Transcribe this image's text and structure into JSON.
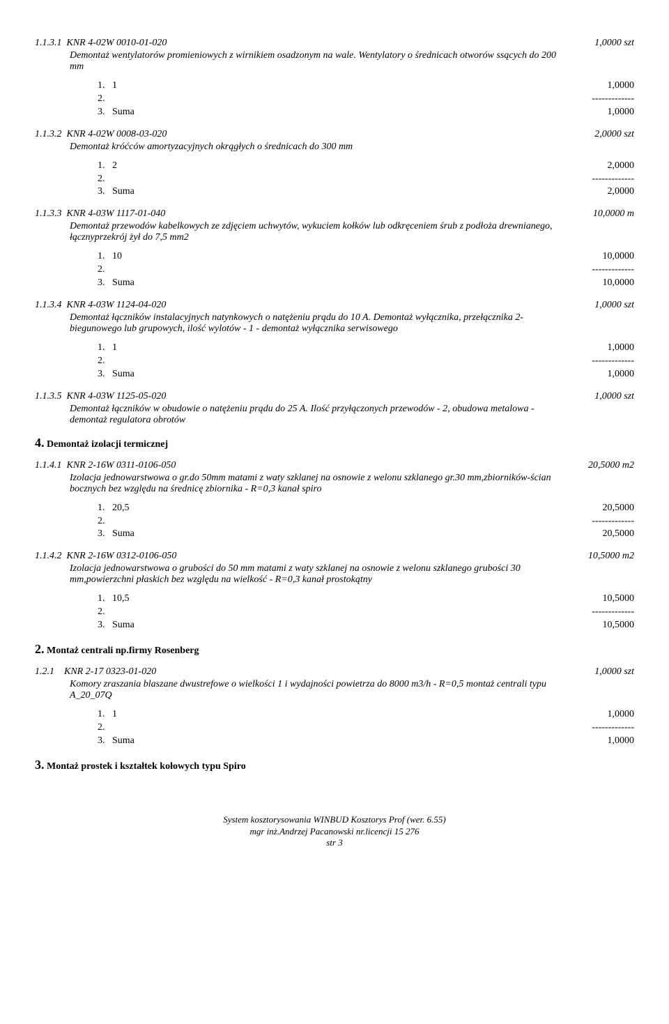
{
  "items": [
    {
      "code": "1.1.3.1  KNR 4-02W 0010-01-020",
      "qty": "1,0000 szt",
      "desc": "Demontaż wentylatorów promieniowych z wirnikiem osadzonym na wale. Wentylatory o średnicach otworów ssących do 200 mm",
      "subs": [
        {
          "l": "1.   1",
          "r": "1,0000"
        },
        {
          "l": "2.",
          "r": "-------------"
        },
        {
          "l": "3.   Suma",
          "r": "1,0000"
        }
      ]
    },
    {
      "code": "1.1.3.2  KNR 4-02W 0008-03-020",
      "qty": "2,0000 szt",
      "desc": "Demontaż króćców amortyzacyjnych okrągłych o średnicach do 300 mm",
      "subs": [
        {
          "l": "1.   2",
          "r": "2,0000"
        },
        {
          "l": "2.",
          "r": "-------------"
        },
        {
          "l": "3.   Suma",
          "r": "2,0000"
        }
      ]
    },
    {
      "code": "1.1.3.3  KNR 4-03W 1117-01-040",
      "qty": "10,0000 m",
      "desc": "Demontaż przewodów kabelkowych ze zdjęciem uchwytów, wykuciem kołków lub odkręceniem śrub z podłoża drewnianego, łącznyprzekrój żył do 7,5 mm2",
      "subs": [
        {
          "l": "1.   10",
          "r": "10,0000"
        },
        {
          "l": "2.",
          "r": "-------------"
        },
        {
          "l": "3.   Suma",
          "r": "10,0000"
        }
      ]
    },
    {
      "code": "1.1.3.4  KNR 4-03W 1124-04-020",
      "qty": "1,0000 szt",
      "desc": "Demontaż łączników instalacyjnych natynkowych o natężeniu prądu do 10 A. Demontaż wyłącznika, przełącznika 2-biegunowego lub grupowych, ilość wylotów - 1 - demontaż wyłącznika serwisowego",
      "subs": [
        {
          "l": "1.   1",
          "r": "1,0000"
        },
        {
          "l": "2.",
          "r": "-------------"
        },
        {
          "l": "3.   Suma",
          "r": "1,0000"
        }
      ]
    },
    {
      "code": "1.1.3.5  KNR 4-03W 1125-05-020",
      "qty": "1,0000 szt",
      "desc": "Demontaż łączników w obudowie o natężeniu prądu do 25 A. Ilość przyłączonych przewodów - 2, obudowa metalowa - demontaż regulatora obrotów",
      "subs": []
    }
  ],
  "section4": {
    "title_num": "4.",
    "title_txt": " Demontaż izolacji termicznej"
  },
  "items4": [
    {
      "code": "1.1.4.1  KNR 2-16W 0311-0106-050",
      "qty": "20,5000 m2",
      "desc": "Izolacja jednowarstwowa o gr.do 50mm matami z waty szklanej na osnowie z welonu szklanego gr.30 mm,zbiorników-ścian bocznych bez względu na średnicę zbiornika - R=0,3 kanał spiro",
      "subs": [
        {
          "l": "1.   20,5",
          "r": "20,5000"
        },
        {
          "l": "2.",
          "r": "-------------"
        },
        {
          "l": "3.   Suma",
          "r": "20,5000"
        }
      ]
    },
    {
      "code": "1.1.4.2  KNR 2-16W 0312-0106-050",
      "qty": "10,5000 m2",
      "desc": "Izolacja jednowarstwowa o grubości do 50 mm matami z waty szklanej na osnowie z welonu szklanego grubości 30 mm,powierzchni płaskich bez względu na wielkość - R=0,3 kanał prostokątny",
      "subs": [
        {
          "l": "1.   10,5",
          "r": "10,5000"
        },
        {
          "l": "2.",
          "r": "-------------"
        },
        {
          "l": "3.   Suma",
          "r": "10,5000"
        }
      ]
    }
  ],
  "section2": {
    "title_num": "2.",
    "title_txt": " Montaż centrali np.firmy Rosenberg"
  },
  "items2": [
    {
      "code": "1.2.1    KNR 2-17 0323-01-020",
      "qty": "1,0000 szt",
      "desc": "Komory zraszania blaszane dwustrefowe o wielkości 1 i wydajności powietrza do 8000 m3/h - R=0,5 montaż centrali typu A_20_07Q",
      "subs": [
        {
          "l": "1.   1",
          "r": "1,0000"
        },
        {
          "l": "2.",
          "r": "-------------"
        },
        {
          "l": "3.   Suma",
          "r": "1,0000"
        }
      ]
    }
  ],
  "section3": {
    "title_num": "3.",
    "title_txt": " Montaż prostek i kształtek kołowych typu Spiro"
  },
  "footer": {
    "l1": "System kosztorysowania WINBUD Kosztorys Prof (wer. 6.55)",
    "l2": "mgr inż.Andrzej Pacanowski nr.licencji 15 276",
    "l3": "str 3"
  }
}
